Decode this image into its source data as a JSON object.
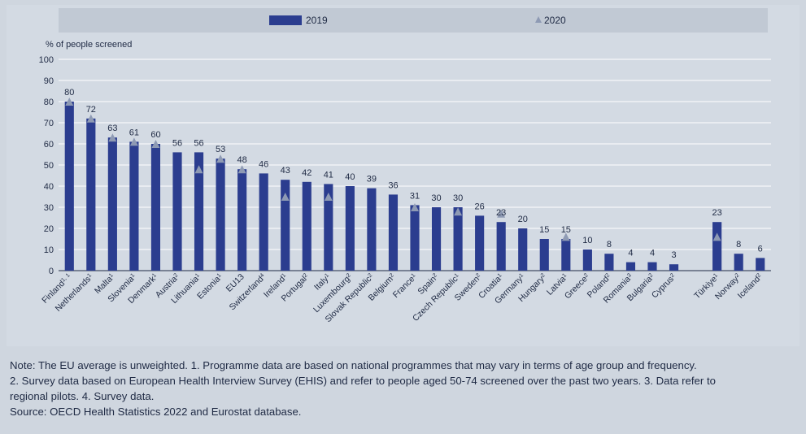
{
  "chart_data": {
    "type": "bar",
    "ylabel": "% of people screened",
    "ylim": [
      0,
      100
    ],
    "yticks": [
      0,
      10,
      20,
      30,
      40,
      50,
      60,
      70,
      80,
      90,
      100
    ],
    "grid": true,
    "legend_position": "top",
    "series": [
      {
        "name": "2019",
        "color": "#2b3d8f",
        "marker": "bar"
      },
      {
        "name": "2020",
        "color": "#8e9ab4",
        "marker": "triangle"
      }
    ],
    "categories": [
      "Finland",
      "Netherlands",
      "Malta",
      "Slovenia",
      "Denmark",
      "Austria",
      "Lithuania",
      "Estonia",
      "EU13",
      "Switzerland",
      "Ireland",
      "Portugal",
      "Italy",
      "Luxembourg",
      "Slovak Republic",
      "Belgium",
      "France",
      "Spain",
      "Czech Republic",
      "Sweden",
      "Croatia",
      "Germany",
      "Hungary",
      "Latvia",
      "Greece",
      "Poland",
      "Romania",
      "Bulgaria",
      "Cyprus",
      "",
      "Türkiye",
      "Norway",
      "Iceland"
    ],
    "footnote_markers": [
      "1, 1",
      "1",
      "1",
      "1",
      "1",
      "2",
      "1",
      "1",
      "",
      "4",
      "1",
      "2",
      "1",
      "2",
      "2",
      "2",
      "1",
      "2",
      "1",
      "2",
      "1",
      "1",
      "2",
      "1",
      "2",
      "2",
      "3",
      "2",
      "2",
      "",
      "1",
      "2",
      "2"
    ],
    "values_2019": [
      80,
      72,
      63,
      61,
      60,
      56,
      56,
      53,
      48,
      46,
      43,
      42,
      41,
      40,
      39,
      36,
      31,
      30,
      30,
      26,
      23,
      20,
      15,
      15,
      10,
      8,
      4,
      4,
      3,
      null,
      23,
      8,
      6
    ],
    "values_2020": [
      80,
      72,
      63,
      61,
      60,
      null,
      48,
      53,
      48,
      null,
      35,
      null,
      35,
      null,
      null,
      null,
      30,
      null,
      28,
      null,
      27,
      null,
      null,
      16,
      null,
      null,
      null,
      null,
      null,
      null,
      16,
      null,
      null
    ],
    "data_labels": [
      "80",
      "72",
      "63",
      "61",
      "60",
      "56",
      "56",
      "53",
      "48",
      "46",
      "43",
      "42",
      "41",
      "40",
      "39",
      "36",
      "31",
      "30",
      "30",
      "26",
      "23",
      "20",
      "15",
      "15",
      "10",
      "8",
      "4",
      "4",
      "3",
      "",
      "23",
      "8",
      "6"
    ]
  },
  "notes": {
    "line1": "Note: The EU average is unweighted. 1. Programme data are based on national programmes that may vary in terms of age group and frequency.",
    "line2": "2. Survey data based on European Health Interview Survey (EHIS) and refer to people aged 50-74 screened over the past two years. 3. Data refer to",
    "line3": "regional pilots. 4. Survey data.",
    "source": "Source: OECD Health Statistics 2022 and Eurostat database."
  }
}
